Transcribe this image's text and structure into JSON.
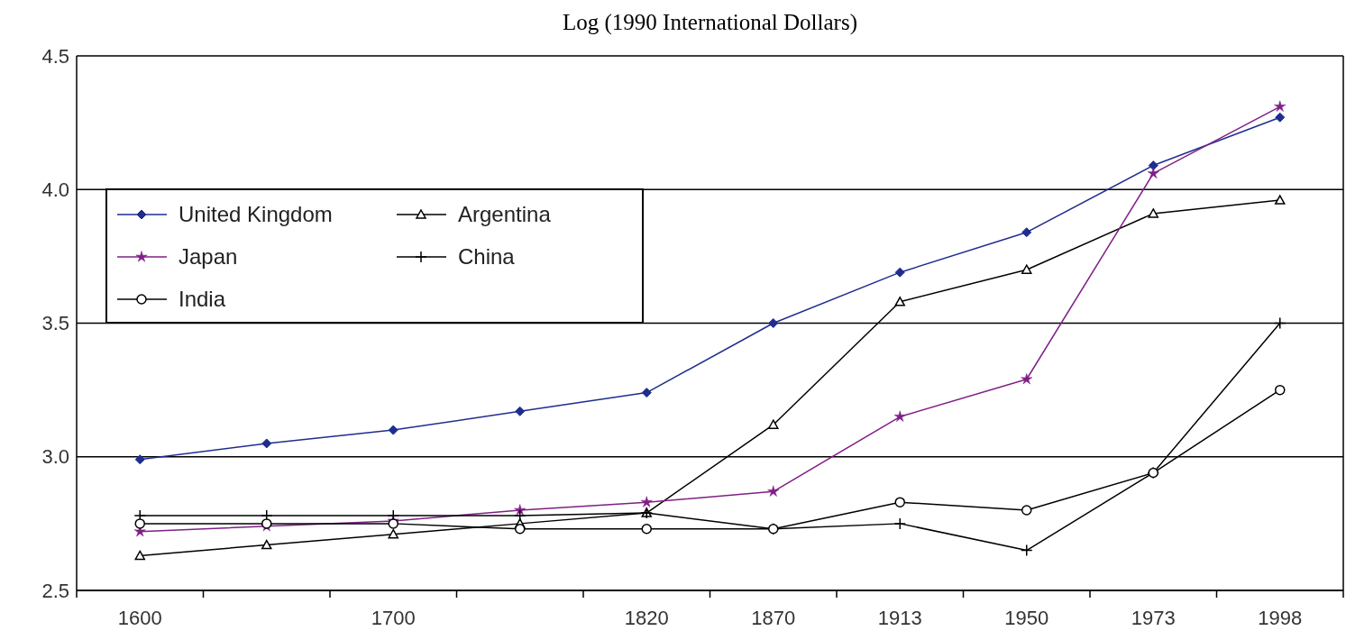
{
  "chart_data": {
    "type": "line",
    "title": "Log (1990 International Dollars)",
    "categories": [
      "1600",
      null,
      "1700",
      null,
      "1820",
      "1870",
      "1913",
      "1950",
      "1973",
      "1998"
    ],
    "ylim": [
      2.5,
      4.5
    ],
    "yticks": [
      {
        "value": 2.5,
        "label": "2.5"
      },
      {
        "value": 3,
        "label": "3.0"
      },
      {
        "value": 3.5,
        "label": "3.5"
      },
      {
        "value": 4,
        "label": "4.0"
      },
      {
        "value": 4.5,
        "label": "4.5"
      }
    ],
    "grid": "y",
    "legend": "top left",
    "series": [
      {
        "name": "United Kingdom",
        "color": "#1f2d8f",
        "marker": "diamond",
        "values": [
          2.99,
          3.05,
          3.1,
          3.17,
          3.24,
          3.5,
          3.69,
          3.84,
          4.09,
          4.27
        ]
      },
      {
        "name": "Argentina",
        "color": "#000000",
        "marker": "triangle",
        "values": [
          2.63,
          2.67,
          2.71,
          2.75,
          2.79,
          3.12,
          3.58,
          3.7,
          3.91,
          3.96
        ]
      },
      {
        "name": "Japan",
        "color": "#7f1f86",
        "marker": "star",
        "values": [
          2.72,
          2.74,
          2.76,
          2.8,
          2.83,
          2.87,
          3.15,
          3.29,
          4.06,
          4.31
        ]
      },
      {
        "name": "China",
        "color": "#000000",
        "marker": "cross",
        "values": [
          2.78,
          2.78,
          2.78,
          2.78,
          2.79,
          2.73,
          2.75,
          2.65,
          2.94,
          3.5
        ]
      },
      {
        "name": "India",
        "color": "#000000",
        "marker": "circle",
        "values": [
          2.75,
          2.75,
          2.75,
          2.73,
          2.73,
          2.73,
          2.83,
          2.8,
          2.94,
          3.25
        ]
      }
    ]
  }
}
